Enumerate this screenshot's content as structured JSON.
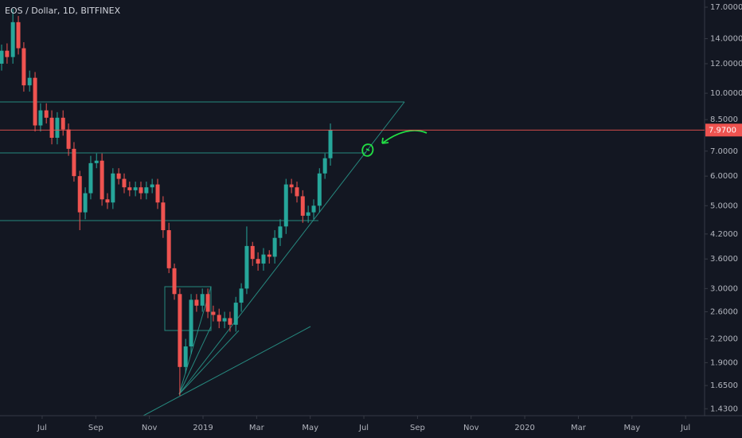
{
  "chart_data": {
    "type": "candlestick",
    "title": "EOS / Dollar, 1D, BITFINEX",
    "log_scale": true,
    "grid": false,
    "up_color": "#26a69a",
    "down_color": "#ef5350",
    "x": [
      2018.374,
      2018.391,
      2018.409,
      2018.426,
      2018.443,
      2018.461,
      2018.478,
      2018.495,
      2018.513,
      2018.53,
      2018.547,
      2018.565,
      2018.582,
      2018.599,
      2018.617,
      2018.634,
      2018.651,
      2018.669,
      2018.686,
      2018.703,
      2018.72,
      2018.738,
      2018.755,
      2018.772,
      2018.79,
      2018.807,
      2018.824,
      2018.842,
      2018.859,
      2018.876,
      2018.894,
      2018.911,
      2018.928,
      2018.946,
      2018.963,
      2018.98,
      2018.998,
      2019.015,
      2019.032,
      2019.05,
      2019.067,
      2019.084,
      2019.102,
      2019.119,
      2019.136,
      2019.154,
      2019.171,
      2019.188,
      2019.206,
      2019.223,
      2019.24,
      2019.258,
      2019.275,
      2019.292,
      2019.31,
      2019.327,
      2019.344,
      2019.362,
      2019.379,
      2019.396
    ],
    "open": [
      12.0,
      13.0,
      12.5,
      15.5,
      13.2,
      10.5,
      11.0,
      8.2,
      9.0,
      8.6,
      7.6,
      8.6,
      8.0,
      7.1,
      6.0,
      4.8,
      5.4,
      6.5,
      6.6,
      5.2,
      5.1,
      6.1,
      5.9,
      5.6,
      5.5,
      5.6,
      5.4,
      5.6,
      5.7,
      5.1,
      4.3,
      3.4,
      2.9,
      1.85,
      2.1,
      2.8,
      2.7,
      2.9,
      2.6,
      2.55,
      2.45,
      2.5,
      2.4,
      2.75,
      3.0,
      3.9,
      3.6,
      3.5,
      3.7,
      3.65,
      4.1,
      4.4,
      5.7,
      5.6,
      5.3,
      4.7,
      4.8,
      5.0,
      6.1,
      6.7
    ],
    "high": [
      13.5,
      13.6,
      16.8,
      16.1,
      13.7,
      11.5,
      11.4,
      9.4,
      9.4,
      9.0,
      8.9,
      9.0,
      8.3,
      7.4,
      6.2,
      5.6,
      6.8,
      6.9,
      6.9,
      5.4,
      6.3,
      6.3,
      6.1,
      5.8,
      5.8,
      5.8,
      5.8,
      5.9,
      5.9,
      5.3,
      4.5,
      3.5,
      3.0,
      2.2,
      2.9,
      2.9,
      3.0,
      3.0,
      2.7,
      2.65,
      2.6,
      2.6,
      2.85,
      3.1,
      4.4,
      4.0,
      3.75,
      3.85,
      3.8,
      4.3,
      4.6,
      5.9,
      5.9,
      5.8,
      5.5,
      5.0,
      5.2,
      6.3,
      6.9,
      8.3
    ],
    "low": [
      11.5,
      12.0,
      12.0,
      12.7,
      10.1,
      10.1,
      7.9,
      7.9,
      8.3,
      7.3,
      7.3,
      7.7,
      6.8,
      5.8,
      4.3,
      4.6,
      5.2,
      6.3,
      5.0,
      4.9,
      4.9,
      5.7,
      5.4,
      5.3,
      5.3,
      5.2,
      5.2,
      5.4,
      4.9,
      4.1,
      3.3,
      2.8,
      1.55,
      1.78,
      2.0,
      2.6,
      2.6,
      2.5,
      2.45,
      2.35,
      2.35,
      2.3,
      2.3,
      2.6,
      2.9,
      3.45,
      3.35,
      3.35,
      3.5,
      3.5,
      3.9,
      4.2,
      5.4,
      5.1,
      4.5,
      4.5,
      4.6,
      4.8,
      5.9,
      6.4
    ],
    "close": [
      13.0,
      12.5,
      15.5,
      13.2,
      10.5,
      11.0,
      8.2,
      9.0,
      8.6,
      7.6,
      8.6,
      8.0,
      7.1,
      6.0,
      4.8,
      5.4,
      6.5,
      6.6,
      5.2,
      5.1,
      6.1,
      5.9,
      5.6,
      5.5,
      5.6,
      5.4,
      5.6,
      5.7,
      5.1,
      4.3,
      3.4,
      2.9,
      1.85,
      2.1,
      2.8,
      2.7,
      2.9,
      2.6,
      2.55,
      2.45,
      2.5,
      2.4,
      2.75,
      3.0,
      3.9,
      3.6,
      3.5,
      3.7,
      3.65,
      4.1,
      4.4,
      5.7,
      5.6,
      5.3,
      4.7,
      4.8,
      5.0,
      6.1,
      6.7,
      7.97
    ],
    "last_price": {
      "value": 7.97,
      "label": "7.9700"
    },
    "xlim": [
      2018.369,
      2020.559
    ],
    "ylim": [
      1.37,
      17.77
    ],
    "xticks": [
      {
        "value": 2018.5,
        "label": "Jul"
      },
      {
        "value": 2018.6667,
        "label": "Sep"
      },
      {
        "value": 2018.8333,
        "label": "Nov"
      },
      2019,
      {
        "value": 2019.1667,
        "label": "Mar"
      },
      {
        "value": 2019.3333,
        "label": "May"
      },
      {
        "value": 2019.5,
        "label": "Jul"
      },
      {
        "value": 2019.6667,
        "label": "Sep"
      },
      {
        "value": 2019.8333,
        "label": "Nov"
      },
      2020,
      {
        "value": 2020.1667,
        "label": "Mar"
      },
      {
        "value": 2020.3333,
        "label": "May"
      },
      {
        "value": 2020.5,
        "label": "Jul"
      }
    ],
    "yticks": [
      {
        "value": 17,
        "label": "17.0000"
      },
      {
        "value": 14,
        "label": "14.0000"
      },
      {
        "value": 12,
        "label": "12.0000"
      },
      {
        "value": 10,
        "label": "10.0000"
      },
      {
        "value": 8.5,
        "label": "8.5000"
      },
      {
        "value": 7,
        "label": "7.0000"
      },
      {
        "value": 6,
        "label": "6.0000"
      },
      {
        "value": 5,
        "label": "5.0000"
      },
      {
        "value": 4.2,
        "label": "4.2000"
      },
      {
        "value": 3.6,
        "label": "3.6000"
      },
      {
        "value": 3,
        "label": "3.0000"
      },
      {
        "value": 2.6,
        "label": "2.6000"
      },
      {
        "value": 2.2,
        "label": "2.2000"
      },
      {
        "value": 1.9,
        "label": "1.9000"
      },
      {
        "value": 1.65,
        "label": "1.6500"
      },
      {
        "value": 1.43,
        "label": "1.4300"
      }
    ]
  }
}
